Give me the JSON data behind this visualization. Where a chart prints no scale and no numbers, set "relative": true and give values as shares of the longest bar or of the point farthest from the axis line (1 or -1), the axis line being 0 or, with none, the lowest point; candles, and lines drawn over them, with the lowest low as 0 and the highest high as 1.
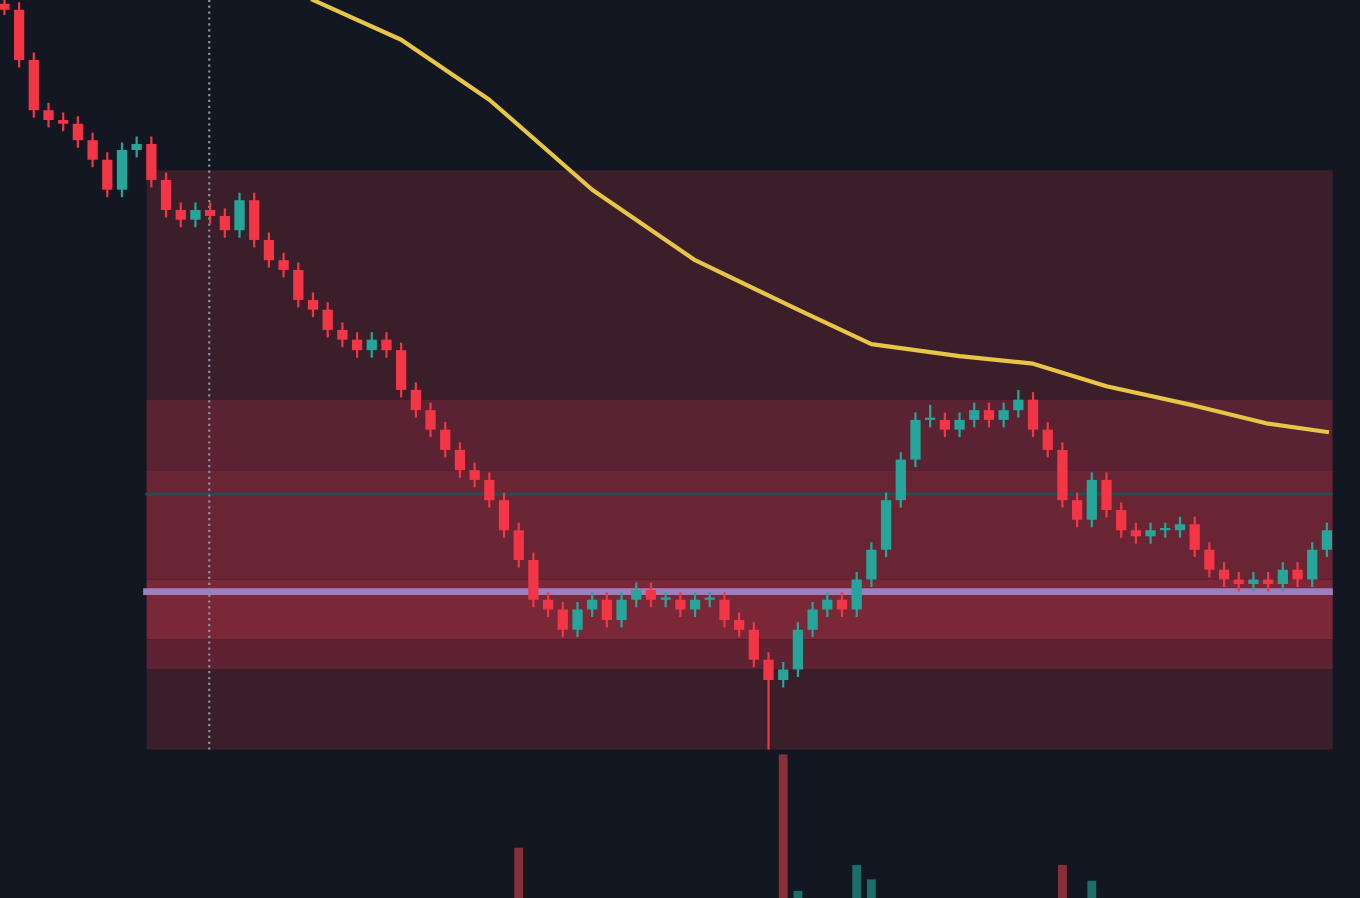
{
  "chart_data": [
    {
      "type": "candlestick",
      "relative": true,
      "categories": [
        null,
        null,
        null,
        null,
        null,
        null,
        null,
        null,
        null,
        null,
        null,
        null,
        null,
        null,
        null,
        null,
        null,
        null,
        null,
        null,
        null,
        null,
        null,
        null,
        null,
        null,
        null,
        null,
        null,
        null,
        null,
        null,
        null,
        null,
        null,
        null,
        null,
        null,
        null,
        null,
        null,
        null,
        null,
        null,
        null,
        null,
        null,
        null,
        null,
        null,
        null,
        null,
        null,
        null,
        null,
        null,
        null,
        null,
        null,
        null,
        null,
        null,
        null,
        null,
        null,
        null,
        null,
        null,
        null,
        null,
        null,
        null,
        null,
        null,
        null,
        null,
        null,
        null,
        null,
        null,
        null,
        null,
        null,
        null,
        null,
        null,
        null,
        null,
        null,
        null,
        null
      ],
      "ohlc": [
        [
          0.995,
          1,
          0.98,
          0.987
        ],
        [
          0.987,
          0.997,
          0.91,
          0.92
        ],
        [
          0.92,
          0.93,
          0.843,
          0.853
        ],
        [
          0.853,
          0.863,
          0.83,
          0.84
        ],
        [
          0.84,
          0.85,
          0.825,
          0.835
        ],
        [
          0.835,
          0.845,
          0.803,
          0.813
        ],
        [
          0.813,
          0.823,
          0.777,
          0.787
        ],
        [
          0.787,
          0.797,
          0.737,
          0.747
        ],
        [
          0.747,
          0.81,
          0.737,
          0.8
        ],
        [
          0.8,
          0.818,
          0.79,
          0.808
        ],
        [
          0.808,
          0.818,
          0.75,
          0.76
        ],
        [
          0.76,
          0.77,
          0.71,
          0.72
        ],
        [
          0.72,
          0.73,
          0.697,
          0.707
        ],
        [
          0.707,
          0.73,
          0.697,
          0.72
        ],
        [
          0.72,
          0.73,
          0.702,
          0.712
        ],
        [
          0.712,
          0.722,
          0.683,
          0.693
        ],
        [
          0.693,
          0.743,
          0.683,
          0.733
        ],
        [
          0.733,
          0.743,
          0.67,
          0.68
        ],
        [
          0.68,
          0.69,
          0.643,
          0.653
        ],
        [
          0.653,
          0.663,
          0.63,
          0.64
        ],
        [
          0.64,
          0.65,
          0.59,
          0.6
        ],
        [
          0.6,
          0.61,
          0.577,
          0.587
        ],
        [
          0.587,
          0.597,
          0.55,
          0.56
        ],
        [
          0.56,
          0.57,
          0.537,
          0.547
        ],
        [
          0.547,
          0.557,
          0.523,
          0.533
        ],
        [
          0.533,
          0.557,
          0.523,
          0.547
        ],
        [
          0.547,
          0.557,
          0.523,
          0.533
        ],
        [
          0.533,
          0.543,
          0.47,
          0.48
        ],
        [
          0.48,
          0.49,
          0.443,
          0.453
        ],
        [
          0.453,
          0.463,
          0.417,
          0.427
        ],
        [
          0.427,
          0.437,
          0.39,
          0.4
        ],
        [
          0.4,
          0.41,
          0.363,
          0.373
        ],
        [
          0.373,
          0.383,
          0.35,
          0.36
        ],
        [
          0.36,
          0.37,
          0.323,
          0.333
        ],
        [
          0.333,
          0.343,
          0.283,
          0.293
        ],
        [
          0.293,
          0.303,
          0.243,
          0.253
        ],
        [
          0.253,
          0.263,
          0.19,
          0.2
        ],
        [
          0.2,
          0.21,
          0.177,
          0.187
        ],
        [
          0.187,
          0.197,
          0.15,
          0.16
        ],
        [
          0.16,
          0.197,
          0.15,
          0.187
        ],
        [
          0.187,
          0.21,
          0.177,
          0.2
        ],
        [
          0.2,
          0.21,
          0.163,
          0.173
        ],
        [
          0.173,
          0.21,
          0.163,
          0.2
        ],
        [
          0.2,
          0.223,
          0.19,
          0.213
        ],
        [
          0.213,
          0.223,
          0.19,
          0.2
        ],
        [
          0.2,
          0.21,
          0.19,
          0.2
        ],
        [
          0.2,
          0.21,
          0.177,
          0.187
        ],
        [
          0.187,
          0.21,
          0.177,
          0.2
        ],
        [
          0.2,
          0.21,
          0.19,
          0.2
        ],
        [
          0.2,
          0.21,
          0.163,
          0.173
        ],
        [
          0.173,
          0.183,
          0.15,
          0.16
        ],
        [
          0.16,
          0.17,
          0.11,
          0.12
        ],
        [
          0.12,
          0.13,
          0,
          0.093
        ],
        [
          0.093,
          0.117,
          0.083,
          0.107
        ],
        [
          0.107,
          0.17,
          0.097,
          0.16
        ],
        [
          0.16,
          0.197,
          0.15,
          0.187
        ],
        [
          0.187,
          0.21,
          0.177,
          0.2
        ],
        [
          0.2,
          0.21,
          0.177,
          0.187
        ],
        [
          0.187,
          0.237,
          0.177,
          0.227
        ],
        [
          0.227,
          0.277,
          0.217,
          0.267
        ],
        [
          0.267,
          0.343,
          0.257,
          0.333
        ],
        [
          0.333,
          0.397,
          0.323,
          0.387
        ],
        [
          0.387,
          0.45,
          0.377,
          0.44
        ],
        [
          0.44,
          0.46,
          0.43,
          0.44
        ],
        [
          0.44,
          0.45,
          0.417,
          0.427
        ],
        [
          0.427,
          0.45,
          0.417,
          0.44
        ],
        [
          0.44,
          0.463,
          0.43,
          0.453
        ],
        [
          0.453,
          0.463,
          0.43,
          0.44
        ],
        [
          0.44,
          0.463,
          0.43,
          0.453
        ],
        [
          0.453,
          0.48,
          0.443,
          0.467
        ],
        [
          0.467,
          0.477,
          0.417,
          0.427
        ],
        [
          0.427,
          0.437,
          0.39,
          0.4
        ],
        [
          0.4,
          0.41,
          0.323,
          0.333
        ],
        [
          0.333,
          0.343,
          0.297,
          0.307
        ],
        [
          0.307,
          0.37,
          0.297,
          0.36
        ],
        [
          0.36,
          0.37,
          0.31,
          0.32
        ],
        [
          0.32,
          0.33,
          0.283,
          0.293
        ],
        [
          0.293,
          0.303,
          0.275,
          0.285
        ],
        [
          0.285,
          0.303,
          0.275,
          0.293
        ],
        [
          0.293,
          0.303,
          0.283,
          0.293
        ],
        [
          0.293,
          0.311,
          0.283,
          0.301
        ],
        [
          0.301,
          0.311,
          0.257,
          0.267
        ],
        [
          0.267,
          0.277,
          0.23,
          0.24
        ],
        [
          0.24,
          0.25,
          0.217,
          0.227
        ],
        [
          0.227,
          0.237,
          0.211,
          0.221
        ],
        [
          0.221,
          0.237,
          0.211,
          0.227
        ],
        [
          0.227,
          0.237,
          0.211,
          0.221
        ],
        [
          0.221,
          0.25,
          0.211,
          0.24
        ],
        [
          0.24,
          0.25,
          0.217,
          0.227
        ],
        [
          0.227,
          0.277,
          0.217,
          0.267
        ],
        [
          0.267,
          0.303,
          0.257,
          0.293
        ]
      ],
      "colors": [
        "#f23645",
        "#f23645",
        "#f23645",
        "#f23645",
        "#f23645",
        "#f23645",
        "#f23645",
        "#f23645",
        "#26a69a",
        "#26a69a",
        "#f23645",
        "#f23645",
        "#f23645",
        "#26a69a",
        "#f23645",
        "#f23645",
        "#26a69a",
        "#f23645",
        "#f23645",
        "#f23645",
        "#f23645",
        "#f23645",
        "#f23645",
        "#f23645",
        "#f23645",
        "#26a69a",
        "#f23645",
        "#f23645",
        "#f23645",
        "#f23645",
        "#f23645",
        "#f23645",
        "#f23645",
        "#f23645",
        "#f23645",
        "#f23645",
        "#f23645",
        "#f23645",
        "#f23645",
        "#26a69a",
        "#26a69a",
        "#f23645",
        "#26a69a",
        "#26a69a",
        "#f23645",
        "#26a69a",
        "#f23645",
        "#26a69a",
        "#26a69a",
        "#f23645",
        "#f23645",
        "#f23645",
        "#f23645",
        "#26a69a",
        "#26a69a",
        "#26a69a",
        "#26a69a",
        "#f23645",
        "#26a69a",
        "#26a69a",
        "#26a69a",
        "#26a69a",
        "#26a69a",
        "#26a69a",
        "#f23645",
        "#26a69a",
        "#26a69a",
        "#f23645",
        "#26a69a",
        "#26a69a",
        "#f23645",
        "#f23645",
        "#f23645",
        "#f23645",
        "#26a69a",
        "#f23645",
        "#f23645",
        "#f23645",
        "#26a69a",
        "#26a69a",
        "#26a69a",
        "#f23645",
        "#f23645",
        "#f23645",
        "#f23645",
        "#26a69a",
        "#f23645",
        "#26a69a",
        "#f23645",
        "#26a69a",
        "#26a69a"
      ],
      "series": [
        {
          "type": "line",
          "color": "#e8c547",
          "values": [
            null,
            null,
            null,
            null,
            null,
            null,
            null,
            null,
            null,
            null,
            null,
            null,
            null,
            null,
            null,
            null,
            null,
            null,
            null,
            null,
            null,
            1.0,
            null,
            null,
            null,
            null,
            null,
            0.947,
            null,
            null,
            null,
            null,
            null,
            0.867,
            null,
            null,
            null,
            null,
            null,
            null,
            0.747,
            null,
            null,
            null,
            null,
            null,
            null,
            0.653,
            null,
            null,
            null,
            null,
            null,
            null,
            0.587,
            null,
            null,
            null,
            null,
            0.541,
            null,
            null,
            null,
            null,
            null,
            0.525,
            null,
            null,
            null,
            null,
            0.515,
            null,
            null,
            null,
            null,
            0.485,
            null,
            null,
            null,
            null,
            null,
            0.459,
            null,
            null,
            null,
            null,
            0.435,
            null,
            null,
            null,
            0.424
          ]
        }
      ],
      "bands": [
        {
          "axis": "y",
          "from": 0.467,
          "to": 0.773,
          "color": "#3a1f2b"
        },
        {
          "axis": "y",
          "from": 0.373,
          "to": 0.467,
          "color": "#5a2232"
        },
        {
          "axis": "y",
          "from": 0.227,
          "to": 0.373,
          "color": "#6a2535"
        },
        {
          "axis": "y",
          "from": 0.147,
          "to": 0.227,
          "color": "#7a2838"
        },
        {
          "axis": "y",
          "from": 0.107,
          "to": 0.147,
          "color": "#5e2232"
        },
        {
          "axis": "y",
          "from": 0,
          "to": 0.107,
          "color": "#3a1f2b"
        }
      ],
      "ref_lines": [
        {
          "axis": "y",
          "value": 0.211,
          "color": "#9c7fc0",
          "line_style": "solid"
        },
        {
          "axis": "y",
          "value": 0.341,
          "color": "#1f4f55",
          "line_style": "solid"
        }
      ],
      "grid": false,
      "legend": false
    },
    {
      "type": "bar",
      "relative": true,
      "categories": [
        null,
        null,
        null,
        null,
        null,
        null,
        null,
        null,
        null,
        null,
        null,
        null,
        null,
        null,
        null,
        null,
        null,
        null,
        null,
        null,
        null,
        null,
        null,
        null,
        null,
        null,
        null,
        null,
        null,
        null,
        null,
        null,
        null,
        null,
        null,
        null,
        null,
        null,
        null,
        null,
        null,
        null,
        null,
        null,
        null,
        null,
        null,
        null,
        null,
        null,
        null,
        null,
        null,
        null,
        null,
        null,
        null,
        null,
        null,
        null,
        null,
        null,
        null,
        null,
        null,
        null,
        null,
        null,
        null,
        null,
        null,
        null,
        null,
        null,
        null,
        null,
        null,
        null,
        null,
        null,
        null,
        null,
        null,
        null,
        null,
        null,
        null,
        null,
        null,
        null,
        null
      ],
      "values": [
        null,
        null,
        null,
        null,
        null,
        null,
        null,
        null,
        null,
        null,
        null,
        null,
        null,
        null,
        null,
        null,
        null,
        null,
        null,
        null,
        null,
        null,
        null,
        null,
        null,
        null,
        null,
        null,
        null,
        null,
        null,
        null,
        null,
        null,
        null,
        0.35,
        null,
        null,
        null,
        null,
        null,
        null,
        null,
        null,
        null,
        null,
        null,
        null,
        null,
        null,
        null,
        null,
        null,
        1.0,
        0.05,
        null,
        null,
        null,
        0.23,
        0.13,
        null,
        null,
        null,
        null,
        null,
        null,
        null,
        null,
        null,
        null,
        null,
        null,
        0.23,
        null,
        0.12,
        null,
        null,
        null,
        null,
        null,
        null,
        null,
        null,
        null,
        null,
        null,
        null,
        null,
        null,
        null,
        null
      ],
      "colors": [
        null,
        null,
        null,
        null,
        null,
        null,
        null,
        null,
        null,
        null,
        null,
        null,
        null,
        null,
        null,
        null,
        null,
        null,
        null,
        null,
        null,
        null,
        null,
        null,
        null,
        null,
        null,
        null,
        null,
        null,
        null,
        null,
        null,
        null,
        null,
        "#8a2f3a",
        null,
        null,
        null,
        null,
        null,
        null,
        null,
        null,
        null,
        null,
        null,
        null,
        null,
        null,
        null,
        null,
        null,
        "#8a2f3a",
        "#1a6f66",
        null,
        null,
        null,
        "#1a6f66",
        "#1a6f66",
        null,
        null,
        null,
        null,
        null,
        null,
        null,
        null,
        null,
        null,
        null,
        null,
        "#8a2f3a",
        null,
        "#1a6f66",
        null,
        null,
        null,
        null,
        null,
        null,
        null,
        null,
        null,
        null,
        null,
        null,
        null,
        null,
        null,
        null
      ],
      "grid": false,
      "legend": false
    }
  ]
}
